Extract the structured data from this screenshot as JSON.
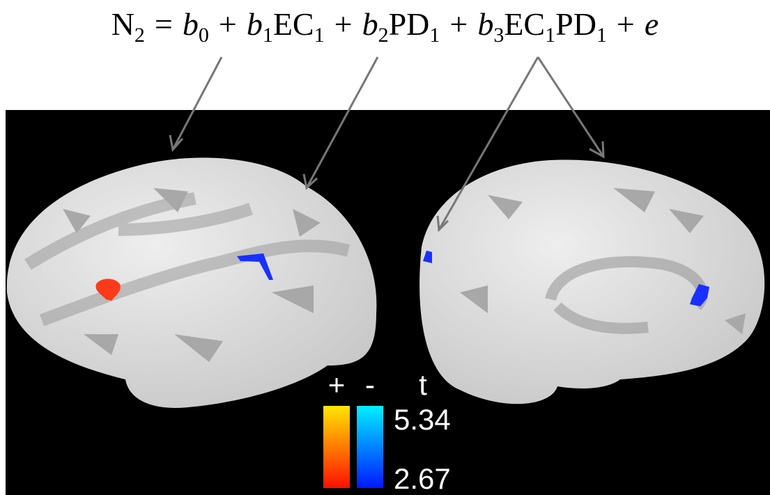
{
  "equation": {
    "tokens": [
      {
        "text": "N",
        "style": "roman"
      },
      {
        "text": "2",
        "style": "sub"
      },
      {
        "text": "=",
        "style": "op"
      },
      {
        "text": "b",
        "style": "italic"
      },
      {
        "text": "0",
        "style": "sub"
      },
      {
        "text": "+",
        "style": "op"
      },
      {
        "text": "b",
        "style": "italic"
      },
      {
        "text": "1",
        "style": "sub"
      },
      {
        "text": "EC",
        "style": "roman"
      },
      {
        "text": "1",
        "style": "sub"
      },
      {
        "text": "+",
        "style": "op"
      },
      {
        "text": "b",
        "style": "italic"
      },
      {
        "text": "2",
        "style": "sub"
      },
      {
        "text": "PD",
        "style": "roman"
      },
      {
        "text": "1",
        "style": "sub"
      },
      {
        "text": "+",
        "style": "op"
      },
      {
        "text": "b",
        "style": "italic"
      },
      {
        "text": "3",
        "style": "sub"
      },
      {
        "text": "EC",
        "style": "roman"
      },
      {
        "text": "1",
        "style": "sub"
      },
      {
        "text": "PD",
        "style": "roman"
      },
      {
        "text": "1",
        "style": "sub"
      },
      {
        "text": "+",
        "style": "op"
      },
      {
        "text": "e",
        "style": "italic"
      }
    ]
  },
  "colorbar": {
    "positive_label": "+",
    "negative_label": "-",
    "title": "t",
    "max": 5.34,
    "min": 2.67
  }
}
